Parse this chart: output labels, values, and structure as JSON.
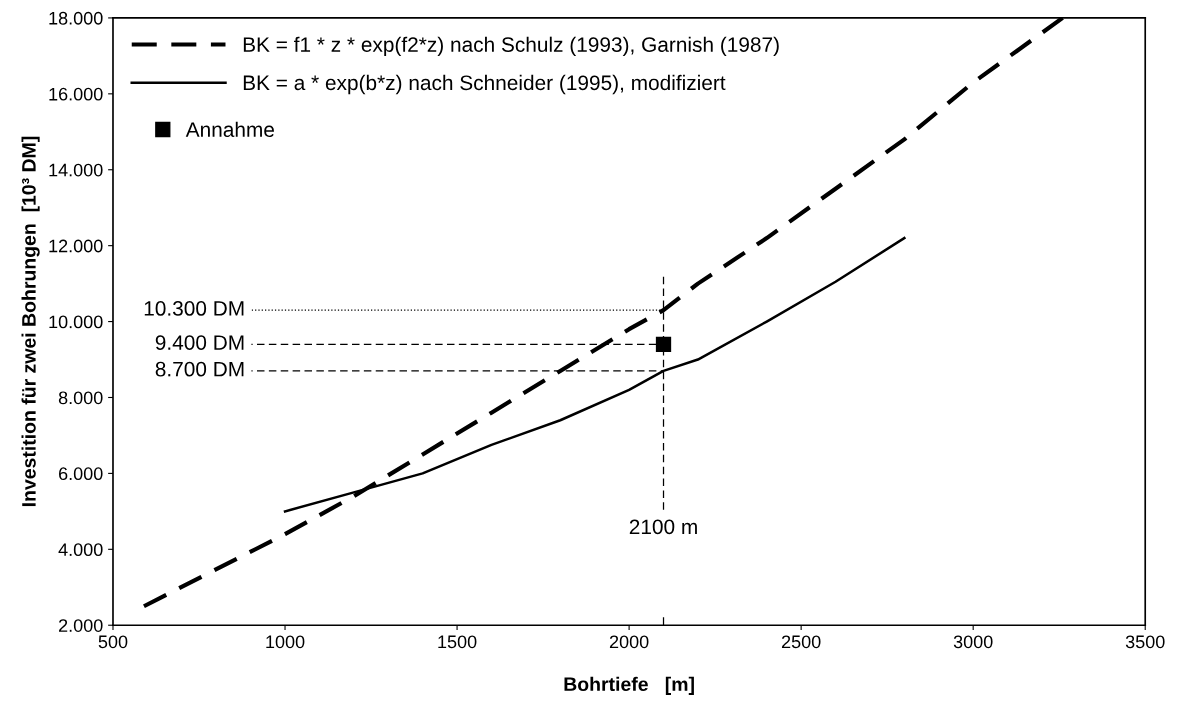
{
  "chart_data": {
    "type": "line",
    "xlabel": "Bohrtiefe   [m]",
    "ylabel": "Investition für zwei Bohrungen  [10³ DM]",
    "xlim": [
      500,
      3500
    ],
    "xticks": [
      500,
      1000,
      1500,
      2000,
      2500,
      3000,
      3500
    ],
    "ylim": [
      2000,
      18000
    ],
    "yticks": [
      {
        "value": 2000,
        "label": "2.000"
      },
      {
        "value": 4000,
        "label": "4.000"
      },
      {
        "value": 6000,
        "label": "6.000"
      },
      {
        "value": 8000,
        "label": "8.000"
      },
      {
        "value": 10000,
        "label": "10.000"
      },
      {
        "value": 12000,
        "label": "12.000"
      },
      {
        "value": 14000,
        "label": "14.000"
      },
      {
        "value": 16000,
        "label": "16.000"
      },
      {
        "value": 18000,
        "label": "18.000"
      }
    ],
    "grid": false,
    "legend": "top left",
    "series": [
      {
        "name": "BK = f1 * z * exp(f2*z) nach Schulz (1993), Garnish (1987)",
        "color": "#000000",
        "line_style": "dashed",
        "marker": "none",
        "x": [
          590,
          1000,
          1200,
          1400,
          1600,
          1800,
          2000,
          2100,
          2200,
          2400,
          2600,
          2800,
          3000,
          3260
        ],
        "values": [
          2500,
          4400,
          5400,
          6500,
          7600,
          8700,
          9800,
          10300,
          11000,
          12200,
          13500,
          14800,
          16300,
          18000
        ]
      },
      {
        "name": "BK = a * exp(b*z) nach Schneider (1995), modifiziert",
        "color": "#000000",
        "line_style": "solid",
        "marker": "none",
        "x": [
          1000,
          1200,
          1400,
          1600,
          1800,
          2000,
          2100,
          2200,
          2400,
          2600,
          2800
        ],
        "values": [
          5000,
          5500,
          6000,
          6750,
          7400,
          8200,
          8700,
          9000,
          10000,
          11050,
          12200
        ]
      },
      {
        "name": "Annahme",
        "type": "scatter",
        "color": "#000000",
        "marker": "square",
        "x": [
          2100
        ],
        "values": [
          9400
        ]
      }
    ],
    "ref_lines": [
      {
        "axis": "y",
        "value": 10300,
        "label": "10.300 DM",
        "line_style": "dotted",
        "color": "#000000"
      },
      {
        "axis": "y",
        "value": 9400,
        "label": "9.400 DM",
        "line_style": "dashed",
        "color": "#000000"
      },
      {
        "axis": "y",
        "value": 8700,
        "label": "8.700 DM",
        "line_style": "dashed",
        "color": "#000000"
      },
      {
        "axis": "x",
        "value": 2100,
        "label": "2100 m",
        "line_style": "dashed",
        "color": "#000000"
      }
    ]
  }
}
